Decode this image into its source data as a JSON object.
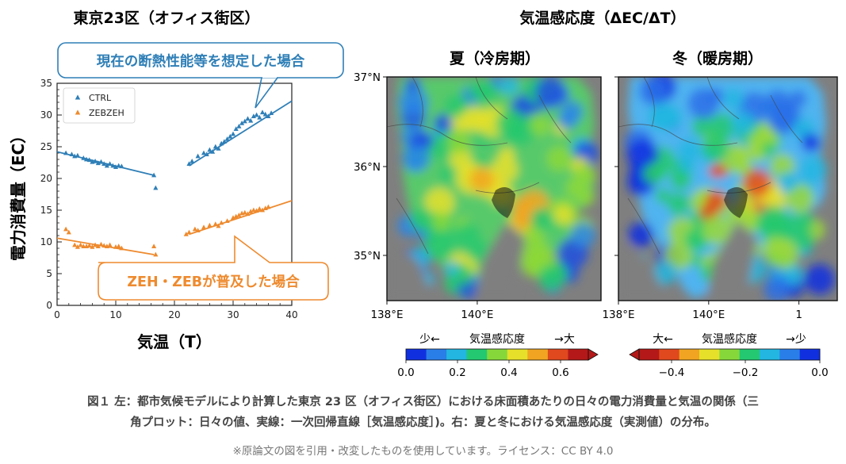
{
  "left_title": "東京23区（オフィス街区）",
  "right_title": "気温感応度（ΔEC/ΔT）",
  "chart_data": [
    {
      "type": "scatter",
      "title": "東京23区（オフィス街区）",
      "xlabel": "気温（T）",
      "ylabel": "電力消費量（EC）",
      "xlim": [
        0,
        40
      ],
      "ylim": [
        0,
        35
      ],
      "xticks": [
        0,
        10,
        20,
        30,
        40
      ],
      "yticks": [
        0,
        5,
        10,
        15,
        20,
        25,
        30,
        35
      ],
      "grid": false,
      "legend_position": "top-left",
      "callouts": {
        "ctrl": "現在の断熱性能等を想定した場合",
        "zeb": "ZEH・ZEBが普及した場合"
      },
      "series": [
        {
          "name": "CTRL",
          "color": "#2f7fb7",
          "marker": "triangle",
          "points": [
            [
              1.5,
              24.0
            ],
            [
              2.5,
              23.8
            ],
            [
              3.0,
              23.5
            ],
            [
              3.5,
              23.6
            ],
            [
              4.5,
              23.2
            ],
            [
              5.0,
              23.0
            ],
            [
              5.5,
              22.9
            ],
            [
              6.0,
              22.6
            ],
            [
              6.5,
              22.7
            ],
            [
              7.0,
              22.4
            ],
            [
              7.5,
              22.6
            ],
            [
              8.0,
              22.3
            ],
            [
              8.5,
              22.0
            ],
            [
              9.0,
              22.3
            ],
            [
              9.5,
              22.0
            ],
            [
              10.0,
              21.8
            ],
            [
              10.5,
              22.0
            ],
            [
              11.0,
              21.9
            ],
            [
              16.5,
              20.5
            ],
            [
              16.8,
              18.5
            ],
            [
              22.5,
              22.3
            ],
            [
              23.0,
              22.7
            ],
            [
              24.0,
              23.5
            ],
            [
              25.0,
              24.0
            ],
            [
              25.5,
              23.8
            ],
            [
              26.0,
              24.5
            ],
            [
              26.5,
              24.2
            ],
            [
              27.0,
              25.0
            ],
            [
              27.5,
              24.7
            ],
            [
              28.0,
              25.5
            ],
            [
              28.5,
              25.8
            ],
            [
              29.0,
              26.2
            ],
            [
              29.5,
              26.6
            ],
            [
              30.0,
              27.0
            ],
            [
              30.5,
              27.8
            ],
            [
              31.0,
              28.2
            ],
            [
              31.5,
              28.7
            ],
            [
              32.0,
              29.0
            ],
            [
              32.5,
              29.4
            ],
            [
              33.0,
              29.1
            ],
            [
              33.5,
              29.8
            ],
            [
              34.0,
              30.0
            ],
            [
              34.5,
              29.6
            ],
            [
              35.0,
              30.4
            ],
            [
              35.5,
              30.1
            ],
            [
              36.0,
              29.8
            ],
            [
              36.5,
              30.3
            ]
          ],
          "fits": [
            {
              "x": [
                0,
                16.5
              ],
              "y": [
                24.2,
                20.5
              ]
            },
            {
              "x": [
                22.5,
                40
              ],
              "y": [
                22.0,
                32.2
              ]
            }
          ]
        },
        {
          "name": "ZEBZEH",
          "color": "#ee8a2e",
          "marker": "triangle",
          "points": [
            [
              1.5,
              12.0
            ],
            [
              2.0,
              11.5
            ],
            [
              3.0,
              9.5
            ],
            [
              3.5,
              9.2
            ],
            [
              4.0,
              9.5
            ],
            [
              4.5,
              9.3
            ],
            [
              5.0,
              9.3
            ],
            [
              5.5,
              9.4
            ],
            [
              6.0,
              9.2
            ],
            [
              6.5,
              9.5
            ],
            [
              7.0,
              9.3
            ],
            [
              7.5,
              9.6
            ],
            [
              8.0,
              9.4
            ],
            [
              8.5,
              9.3
            ],
            [
              9.0,
              9.5
            ],
            [
              10.0,
              9.2
            ],
            [
              10.5,
              9.3
            ],
            [
              11.0,
              9.0
            ],
            [
              16.5,
              9.3
            ],
            [
              16.8,
              8.0
            ],
            [
              22.0,
              11.2
            ],
            [
              22.5,
              11.5
            ],
            [
              23.5,
              12.0
            ],
            [
              24.0,
              11.8
            ],
            [
              25.0,
              12.3
            ],
            [
              26.0,
              12.6
            ],
            [
              27.0,
              12.8
            ],
            [
              27.5,
              12.5
            ],
            [
              28.0,
              13.0
            ],
            [
              29.0,
              13.3
            ],
            [
              30.0,
              13.8
            ],
            [
              30.5,
              14.0
            ],
            [
              31.0,
              14.2
            ],
            [
              31.5,
              14.5
            ],
            [
              32.0,
              14.6
            ],
            [
              32.5,
              14.4
            ],
            [
              33.0,
              14.8
            ],
            [
              33.5,
              15.0
            ],
            [
              34.0,
              14.9
            ],
            [
              34.5,
              15.2
            ],
            [
              35.0,
              15.0
            ],
            [
              35.5,
              15.3
            ],
            [
              36.0,
              15.5
            ]
          ],
          "fits": [
            {
              "x": [
                0,
                16.5
              ],
              "y": [
                10.6,
                8.0
              ]
            },
            {
              "x": [
                22.5,
                40
              ],
              "y": [
                11.2,
                16.5
              ]
            }
          ]
        }
      ]
    },
    {
      "type": "heatmap",
      "title": "夏（冷房期）",
      "x_ticks": [
        "138°E",
        "140°E"
      ],
      "y_ticks": [
        "37°N",
        "36°N",
        "35°N"
      ],
      "colorbar": {
        "label_left": "少←",
        "label_center": "気温感応度",
        "label_right": "→大",
        "ticks": [
          "0.0",
          "0.2",
          "0.4",
          "0.6"
        ],
        "colors": [
          "#1030e0",
          "#2a7ee8",
          "#22b6e0",
          "#24c870",
          "#86d83a",
          "#e6e02a",
          "#f0a422",
          "#e0481e",
          "#b41818"
        ]
      }
    },
    {
      "type": "heatmap",
      "title": "冬（暖房期）",
      "x_ticks": [
        "138°E",
        "140°E",
        "1"
      ],
      "colorbar": {
        "label_left": "大←",
        "label_center": "気温感応度",
        "label_right": "→少",
        "ticks": [
          "−0.4",
          "−0.2",
          "0.0"
        ],
        "colors": [
          "#b41818",
          "#e0481e",
          "#f0a422",
          "#e6e02a",
          "#86d83a",
          "#24c870",
          "#22b6e0",
          "#2a7ee8",
          "#1030e0"
        ]
      }
    }
  ],
  "caption": {
    "line1": "図１ 左：都市気候モデルにより計算した東京 23 区（オフィス街区）における床面積あたりの日々の電力消費量と気温の関係（三",
    "line2": "角プロット：日々の値、実線：一次回帰直線［気温感応度］)。右：夏と冬における気温感応度（実測値）の分布。"
  },
  "note": "※原論文の図を引用・改変したものを使用しています。ライセンス：CC BY 4.0"
}
